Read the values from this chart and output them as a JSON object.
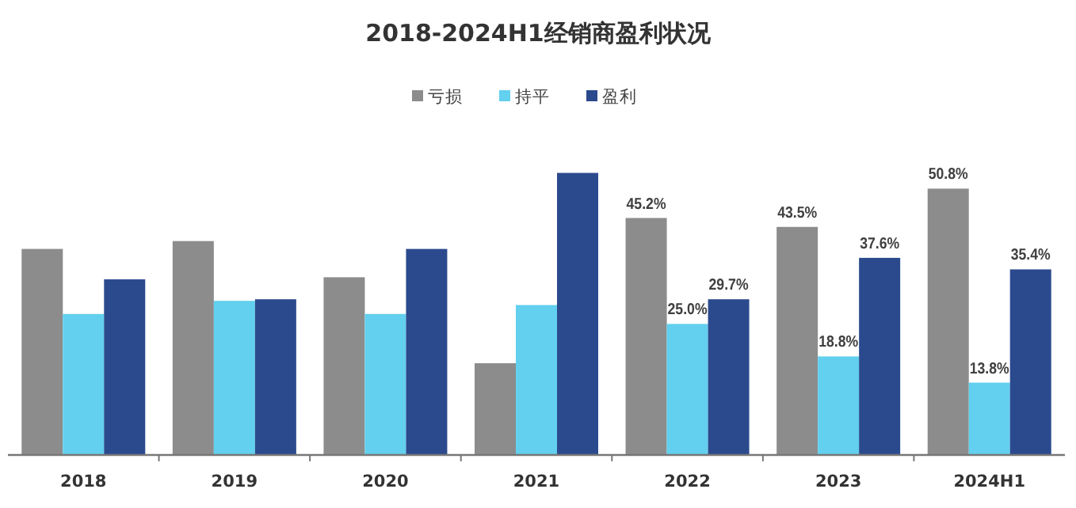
{
  "chart_data": {
    "type": "bar",
    "title": "2018-2024H1经销商盈利状况",
    "categories": [
      "2018",
      "2019",
      "2020",
      "2021",
      "2022",
      "2023",
      "2024H1"
    ],
    "series": [
      {
        "name": "亏损",
        "color": "#8c8c8c",
        "values": [
          39.3,
          40.8,
          33.9,
          17.5,
          45.2,
          43.5,
          50.8
        ],
        "value_labels": [
          null,
          null,
          null,
          null,
          "45.2%",
          "43.5%",
          "50.8%"
        ]
      },
      {
        "name": "持平",
        "color": "#62d0ee",
        "values": [
          26.9,
          29.4,
          26.9,
          28.6,
          25.0,
          18.8,
          13.8
        ],
        "value_labels": [
          null,
          null,
          null,
          null,
          "25.0%",
          "18.8%",
          "13.8%"
        ]
      },
      {
        "name": "盈利",
        "color": "#2b4a8e",
        "values": [
          33.5,
          29.7,
          39.3,
          53.8,
          29.7,
          37.6,
          35.4
        ],
        "value_labels": [
          null,
          null,
          null,
          null,
          "29.7%",
          "37.6%",
          "35.4%"
        ]
      }
    ],
    "legend": "top"
  }
}
